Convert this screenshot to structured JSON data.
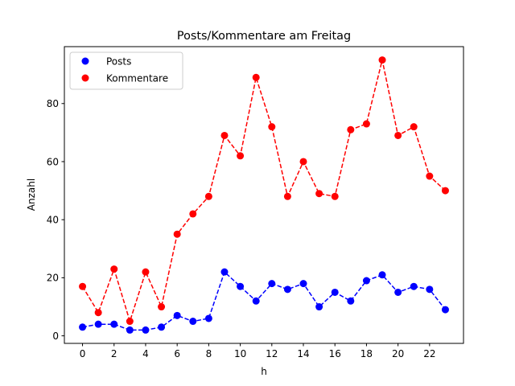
{
  "chart_data": {
    "type": "line",
    "title": "Posts/Kommentare am Freitag",
    "xlabel": "h",
    "ylabel": "Anzahl",
    "x": [
      0,
      1,
      2,
      3,
      4,
      5,
      6,
      7,
      8,
      9,
      10,
      11,
      12,
      13,
      14,
      15,
      16,
      17,
      18,
      19,
      20,
      21,
      22,
      23
    ],
    "xticks": [
      0,
      2,
      4,
      6,
      8,
      10,
      12,
      14,
      16,
      18,
      20,
      22
    ],
    "yticks": [
      0,
      20,
      40,
      60,
      80
    ],
    "xlim": [
      -1.15,
      24.15
    ],
    "ylim": [
      -2.6,
      99.6
    ],
    "grid": false,
    "legend_position": "upper left",
    "series": [
      {
        "name": "Posts",
        "color": "#0000ff",
        "style": "dashed-with-circle-markers",
        "values": [
          3,
          4,
          4,
          2,
          2,
          3,
          7,
          5,
          6,
          22,
          17,
          12,
          18,
          16,
          18,
          10,
          15,
          12,
          19,
          21,
          15,
          17,
          16,
          9
        ]
      },
      {
        "name": "Kommentare",
        "color": "#ff0000",
        "style": "dashed-with-circle-markers",
        "values": [
          17,
          8,
          23,
          5,
          22,
          10,
          35,
          42,
          48,
          69,
          62,
          89,
          72,
          48,
          60,
          49,
          48,
          71,
          73,
          95,
          69,
          72,
          55,
          50
        ]
      }
    ]
  }
}
